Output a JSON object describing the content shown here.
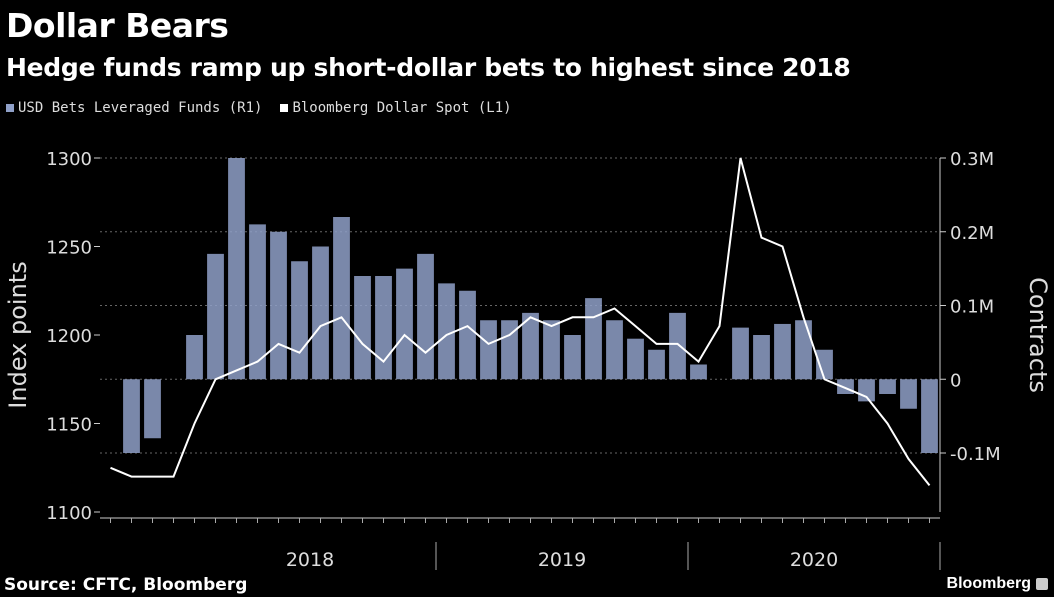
{
  "header": {
    "title": "Dollar Bears",
    "subtitle": "Hedge funds ramp up short-dollar bets to highest since 2018"
  },
  "legend": {
    "bars_label": "USD Bets Leveraged Funds (R1)",
    "line_label": "Bloomberg Dollar Spot (L1)"
  },
  "footer": {
    "source": "Source: CFTC, Bloomberg",
    "brand": "Bloomberg"
  },
  "colors": {
    "background": "#000000",
    "bars": "#8fa0c8",
    "line": "#ffffff",
    "grid": "#666666"
  },
  "chart_data": {
    "type": "bar",
    "combo_line": true,
    "left_axis": {
      "label": "Index points",
      "ticks": [
        1100,
        1150,
        1200,
        1250,
        1300
      ],
      "tick_labels": [
        "1100",
        "1150",
        "1200",
        "1250",
        "1300"
      ],
      "range": [
        1100,
        1300
      ]
    },
    "right_axis": {
      "label": "Contracts",
      "ticks": [
        -100000,
        0,
        100000,
        200000,
        300000
      ],
      "tick_labels": [
        "-0.1M",
        "0",
        "0.1M",
        "0.2M",
        "0.3M"
      ],
      "range": [
        -180000,
        300000
      ]
    },
    "x_axis": {
      "tick_labels": [
        "2018",
        "2019",
        "2020"
      ],
      "range": [
        "2017-09",
        "2020-12"
      ]
    },
    "grid": true,
    "series": [
      {
        "name": "USD Bets Leveraged Funds (R1)",
        "kind": "bar",
        "axis": "right",
        "x": [
          "2017-10",
          "2017-11",
          "2017-12",
          "2018-01",
          "2018-02",
          "2018-03",
          "2018-04",
          "2018-05",
          "2018-06",
          "2018-07",
          "2018-08",
          "2018-09",
          "2018-10",
          "2018-11",
          "2018-12",
          "2019-01",
          "2019-02",
          "2019-03",
          "2019-04",
          "2019-05",
          "2019-06",
          "2019-07",
          "2019-08",
          "2019-09",
          "2019-10",
          "2019-11",
          "2019-12",
          "2020-01",
          "2020-02",
          "2020-03",
          "2020-04",
          "2020-05",
          "2020-06",
          "2020-07",
          "2020-08",
          "2020-09",
          "2020-10",
          "2020-11",
          "2020-12"
        ],
        "values": [
          -100000,
          -80000,
          0,
          60000,
          170000,
          300000,
          210000,
          200000,
          160000,
          180000,
          220000,
          140000,
          140000,
          150000,
          170000,
          130000,
          120000,
          80000,
          80000,
          90000,
          80000,
          60000,
          110000,
          80000,
          55000,
          40000,
          90000,
          20000,
          0,
          70000,
          60000,
          75000,
          80000,
          40000,
          -20000,
          -30000,
          -20000,
          -40000,
          -100000
        ]
      },
      {
        "name": "Bloomberg Dollar Spot (L1)",
        "kind": "line",
        "axis": "left",
        "x": [
          "2017-09",
          "2017-10",
          "2017-11",
          "2017-12",
          "2018-01",
          "2018-02",
          "2018-03",
          "2018-04",
          "2018-05",
          "2018-06",
          "2018-07",
          "2018-08",
          "2018-09",
          "2018-10",
          "2018-11",
          "2018-12",
          "2019-01",
          "2019-02",
          "2019-03",
          "2019-04",
          "2019-05",
          "2019-06",
          "2019-07",
          "2019-08",
          "2019-09",
          "2019-10",
          "2019-11",
          "2019-12",
          "2020-01",
          "2020-02",
          "2020-03",
          "2020-04",
          "2020-05",
          "2020-06",
          "2020-07",
          "2020-08",
          "2020-09",
          "2020-10",
          "2020-11",
          "2020-12"
        ],
        "values": [
          1125,
          1120,
          1120,
          1120,
          1150,
          1175,
          1180,
          1185,
          1195,
          1190,
          1205,
          1210,
          1195,
          1185,
          1200,
          1190,
          1200,
          1205,
          1195,
          1200,
          1210,
          1205,
          1210,
          1210,
          1215,
          1205,
          1195,
          1195,
          1185,
          1205,
          1300,
          1255,
          1250,
          1210,
          1175,
          1170,
          1165,
          1150,
          1130,
          1115
        ]
      }
    ]
  }
}
